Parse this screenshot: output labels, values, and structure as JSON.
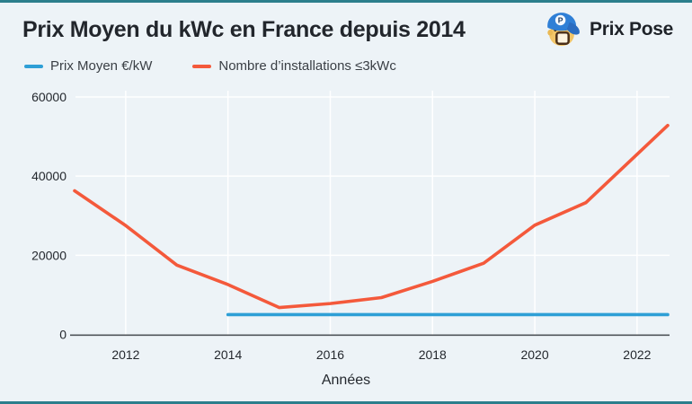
{
  "page": {
    "background_color": "#edf3f7",
    "edge_bar_color": "#2b7e8c"
  },
  "header": {
    "brand": {
      "name": "Prix Pose"
    }
  },
  "chart_data": {
    "type": "line",
    "title": "Prix Moyen du kWc en France depuis 2014",
    "xlabel": "Années",
    "ylabel": "",
    "xlim": [
      2011,
      2022.6
    ],
    "ylim": [
      0,
      60000
    ],
    "x_ticks": [
      2012,
      2014,
      2016,
      2018,
      2020,
      2022
    ],
    "y_ticks": [
      0,
      20000,
      40000,
      60000
    ],
    "grid": true,
    "grid_color": "#ffffff",
    "axis_line_color": "#50555a",
    "tick_label_color": "#24282e",
    "legend_position": "top-left",
    "series": [
      {
        "name": "Prix Moyen €/kW",
        "color": "#2e9fd6",
        "x": [
          2014,
          2022.6
        ],
        "y": [
          5000,
          5000
        ]
      },
      {
        "name": "Nombre d’installations ≤3kWc",
        "color": "#f4593b",
        "x": [
          2011,
          2012,
          2013,
          2014,
          2015,
          2016,
          2017,
          2018,
          2019,
          2020,
          2021,
          2022.6
        ],
        "y": [
          36300,
          27500,
          17500,
          12600,
          6800,
          7800,
          9300,
          13400,
          18000,
          27600,
          33300,
          52800
        ]
      }
    ]
  }
}
